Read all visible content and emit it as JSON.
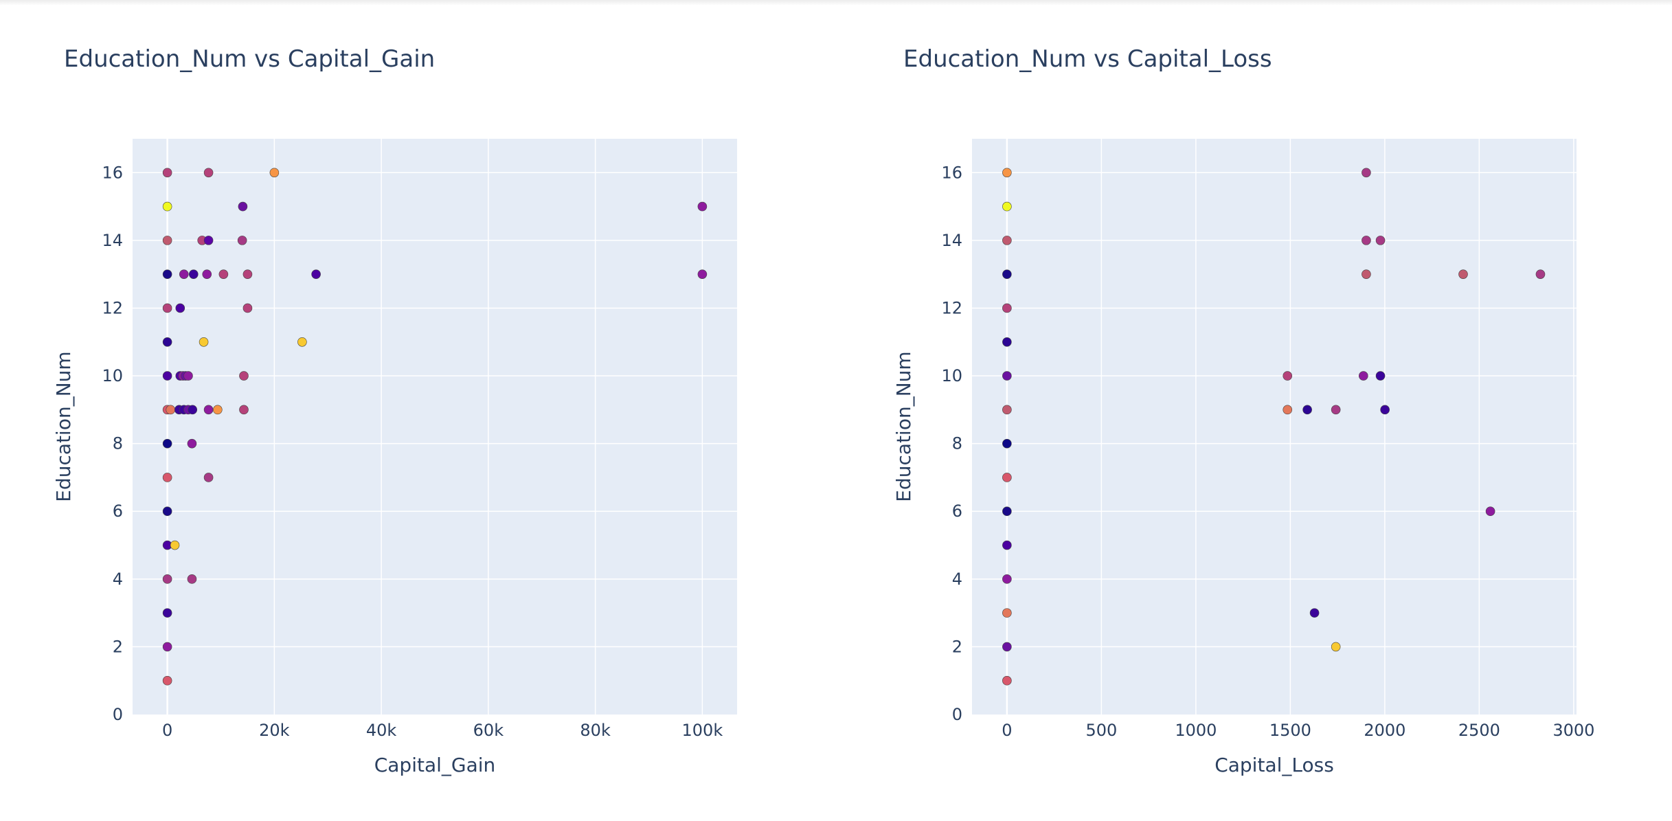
{
  "chart_data": [
    {
      "type": "scatter",
      "title": "Education_Num vs Capital_Gain",
      "xlabel": "Capital_Gain",
      "ylabel": "Education_Num",
      "xlim": [
        -6500,
        106500
      ],
      "ylim": [
        0,
        17
      ],
      "xticks": [
        0,
        20000,
        40000,
        60000,
        80000,
        100000
      ],
      "xtick_labels": [
        "0",
        "20k",
        "40k",
        "60k",
        "80k",
        "100k"
      ],
      "yticks": [
        0,
        2,
        4,
        6,
        8,
        10,
        12,
        14,
        16
      ],
      "ytick_labels": [
        "0",
        "2",
        "4",
        "6",
        "8",
        "10",
        "12",
        "14",
        "16"
      ],
      "grid": true,
      "colorscale": "plasma",
      "points": [
        {
          "x": 0,
          "y": 16,
          "color": "#b5427a"
        },
        {
          "x": 7700,
          "y": 16,
          "color": "#b5427a"
        },
        {
          "x": 20000,
          "y": 16,
          "color": "#f79545"
        },
        {
          "x": 0,
          "y": 15,
          "color": "#f0f921"
        },
        {
          "x": 14100,
          "y": 15,
          "color": "#6a11a0"
        },
        {
          "x": 100000,
          "y": 15,
          "color": "#8e1b9e"
        },
        {
          "x": 0,
          "y": 14,
          "color": "#c05a6f"
        },
        {
          "x": 6500,
          "y": 14,
          "color": "#b5427a"
        },
        {
          "x": 7700,
          "y": 14,
          "color": "#5d06a6"
        },
        {
          "x": 14000,
          "y": 14,
          "color": "#a63a85"
        },
        {
          "x": 0,
          "y": 13,
          "color": "#1a0a89"
        },
        {
          "x": 3100,
          "y": 13,
          "color": "#8e1b9e"
        },
        {
          "x": 4900,
          "y": 13,
          "color": "#3b049a"
        },
        {
          "x": 7400,
          "y": 13,
          "color": "#8e1b9e"
        },
        {
          "x": 10500,
          "y": 13,
          "color": "#b5427a"
        },
        {
          "x": 15000,
          "y": 13,
          "color": "#b5427a"
        },
        {
          "x": 27800,
          "y": 13,
          "color": "#4c02a1"
        },
        {
          "x": 100000,
          "y": 13,
          "color": "#8e1b9e"
        },
        {
          "x": 0,
          "y": 12,
          "color": "#b5427a"
        },
        {
          "x": 2400,
          "y": 12,
          "color": "#4c02a1"
        },
        {
          "x": 15000,
          "y": 12,
          "color": "#b5427a"
        },
        {
          "x": 0,
          "y": 11,
          "color": "#2c0594"
        },
        {
          "x": 6800,
          "y": 11,
          "color": "#f8c931"
        },
        {
          "x": 25200,
          "y": 11,
          "color": "#f8c931"
        },
        {
          "x": 0,
          "y": 10,
          "color": "#4c02a1"
        },
        {
          "x": 2400,
          "y": 10,
          "color": "#4c02a1"
        },
        {
          "x": 2900,
          "y": 10,
          "color": "#8e1b9e"
        },
        {
          "x": 3400,
          "y": 10,
          "color": "#6a11a0"
        },
        {
          "x": 3900,
          "y": 10,
          "color": "#8e1b9e"
        },
        {
          "x": 14300,
          "y": 10,
          "color": "#b5427a"
        },
        {
          "x": 0,
          "y": 9,
          "color": "#d8576b"
        },
        {
          "x": 600,
          "y": 9,
          "color": "#e3775a"
        },
        {
          "x": 2200,
          "y": 9,
          "color": "#3b049a"
        },
        {
          "x": 3100,
          "y": 9,
          "color": "#3b049a"
        },
        {
          "x": 3900,
          "y": 9,
          "color": "#6a11a0"
        },
        {
          "x": 4700,
          "y": 9,
          "color": "#3b049a"
        },
        {
          "x": 7700,
          "y": 9,
          "color": "#8e1b9e"
        },
        {
          "x": 9400,
          "y": 9,
          "color": "#f79545"
        },
        {
          "x": 14300,
          "y": 9,
          "color": "#b5427a"
        },
        {
          "x": 0,
          "y": 8,
          "color": "#0d0887"
        },
        {
          "x": 4600,
          "y": 8,
          "color": "#8e1b9e"
        },
        {
          "x": 0,
          "y": 7,
          "color": "#d8576b"
        },
        {
          "x": 7700,
          "y": 7,
          "color": "#a63a85"
        },
        {
          "x": 0,
          "y": 6,
          "color": "#1a0a89"
        },
        {
          "x": 0,
          "y": 5,
          "color": "#4c02a1"
        },
        {
          "x": 1400,
          "y": 5,
          "color": "#f8c931"
        },
        {
          "x": 0,
          "y": 4,
          "color": "#a63a85"
        },
        {
          "x": 4600,
          "y": 4,
          "color": "#a63a85"
        },
        {
          "x": 0,
          "y": 3,
          "color": "#3b049a"
        },
        {
          "x": 0,
          "y": 2,
          "color": "#8e1b9e"
        },
        {
          "x": 0,
          "y": 1,
          "color": "#d8576b"
        }
      ]
    },
    {
      "type": "scatter",
      "title": "Education_Num vs Capital_Loss",
      "xlabel": "Capital_Loss",
      "ylabel": "Education_Num",
      "xlim": [
        -185,
        3015
      ],
      "ylim": [
        0,
        17
      ],
      "xticks": [
        0,
        500,
        1000,
        1500,
        2000,
        2500,
        3000
      ],
      "xtick_labels": [
        "0",
        "500",
        "1000",
        "1500",
        "2000",
        "2500",
        "3000"
      ],
      "yticks": [
        0,
        2,
        4,
        6,
        8,
        10,
        12,
        14,
        16
      ],
      "ytick_labels": [
        "0",
        "2",
        "4",
        "6",
        "8",
        "10",
        "12",
        "14",
        "16"
      ],
      "grid": true,
      "colorscale": "plasma",
      "points": [
        {
          "x": 0,
          "y": 16,
          "color": "#f79545"
        },
        {
          "x": 1902,
          "y": 16,
          "color": "#a63a85"
        },
        {
          "x": 0,
          "y": 15,
          "color": "#f0f921"
        },
        {
          "x": 0,
          "y": 14,
          "color": "#c05a6f"
        },
        {
          "x": 1902,
          "y": 14,
          "color": "#a63a85"
        },
        {
          "x": 1977,
          "y": 14,
          "color": "#a63a85"
        },
        {
          "x": 0,
          "y": 13,
          "color": "#1a0a89"
        },
        {
          "x": 1902,
          "y": 13,
          "color": "#c05a6f"
        },
        {
          "x": 2415,
          "y": 13,
          "color": "#c05a6f"
        },
        {
          "x": 2824,
          "y": 13,
          "color": "#a63a85"
        },
        {
          "x": 0,
          "y": 12,
          "color": "#b5427a"
        },
        {
          "x": 0,
          "y": 11,
          "color": "#2c0594"
        },
        {
          "x": 0,
          "y": 10,
          "color": "#6a11a0"
        },
        {
          "x": 1485,
          "y": 10,
          "color": "#b5427a"
        },
        {
          "x": 1887,
          "y": 10,
          "color": "#8e1b9e"
        },
        {
          "x": 1977,
          "y": 10,
          "color": "#3b049a"
        },
        {
          "x": 0,
          "y": 9,
          "color": "#c05a6f"
        },
        {
          "x": 1485,
          "y": 9,
          "color": "#e3775a"
        },
        {
          "x": 1590,
          "y": 9,
          "color": "#2c0594"
        },
        {
          "x": 1741,
          "y": 9,
          "color": "#a63a85"
        },
        {
          "x": 2001,
          "y": 9,
          "color": "#3b049a"
        },
        {
          "x": 0,
          "y": 8,
          "color": "#0d0887"
        },
        {
          "x": 0,
          "y": 7,
          "color": "#d8576b"
        },
        {
          "x": 0,
          "y": 6,
          "color": "#1a0a89"
        },
        {
          "x": 2559,
          "y": 6,
          "color": "#8e1b9e"
        },
        {
          "x": 0,
          "y": 5,
          "color": "#4c02a1"
        },
        {
          "x": 0,
          "y": 4,
          "color": "#8e1b9e"
        },
        {
          "x": 0,
          "y": 3,
          "color": "#e3775a"
        },
        {
          "x": 1628,
          "y": 3,
          "color": "#3b049a"
        },
        {
          "x": 0,
          "y": 2,
          "color": "#6a11a0"
        },
        {
          "x": 1741,
          "y": 2,
          "color": "#f8c931"
        },
        {
          "x": 0,
          "y": 1,
          "color": "#d8576b"
        }
      ]
    }
  ],
  "colors": {
    "plot_bg": "#e5ecf6",
    "grid": "#ffffff",
    "text": "#2a3f5f",
    "marker_line": "#444444"
  }
}
